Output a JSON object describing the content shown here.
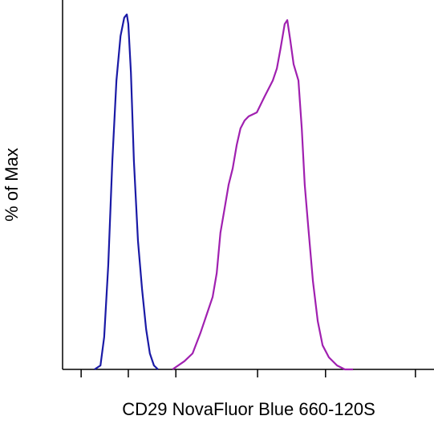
{
  "chart_data": {
    "type": "line",
    "xlabel": "CD29 NovaFluor Blue 660-120S",
    "ylabel": "% of Max",
    "xlim": [
      0,
      100
    ],
    "ylim": [
      0,
      100
    ],
    "xticks": [
      5,
      17.7,
      30.5,
      52.5,
      70.8,
      95
    ],
    "series": [
      {
        "color": "#1a1aa6",
        "x": [
          8.6,
          10.2,
          11.2,
          12.3,
          13.4,
          14.5,
          15.6,
          16.6,
          17.3,
          17.7,
          18.4,
          19.2,
          20.3,
          21.4,
          22.5,
          23.5,
          24.6,
          25.7
        ],
        "values": [
          0,
          1.1,
          9.1,
          29.4,
          58.8,
          81.4,
          93.9,
          99.1,
          100,
          97.3,
          83.7,
          58.8,
          36.2,
          22.6,
          11.3,
          4.5,
          1.1,
          0
        ]
      },
      {
        "color": "#a020b0",
        "x": [
          29.6,
          32.8,
          35.0,
          37.1,
          39.3,
          40.4,
          41.5,
          42.5,
          43.6,
          44.7,
          45.8,
          46.9,
          47.9,
          49.0,
          50.1,
          52.3,
          54.4,
          56.6,
          57.7,
          58.7,
          59.8,
          60.5,
          61.3,
          62.2,
          63.5,
          64.4,
          65.2,
          66.1,
          67.4,
          68.7,
          70.0,
          71.7,
          73.9,
          76.0,
          78.2
        ],
        "values": [
          0,
          2.3,
          4.5,
          10.2,
          17.0,
          20.4,
          27.1,
          38.5,
          45.2,
          52.0,
          56.6,
          63.3,
          67.9,
          70.1,
          71.3,
          72.4,
          76.9,
          81.4,
          84.8,
          90.5,
          97.3,
          98.4,
          92.8,
          86.0,
          81.4,
          67.9,
          52.0,
          40.7,
          24.9,
          13.6,
          6.8,
          3.4,
          1.1,
          0,
          0
        ]
      }
    ]
  }
}
